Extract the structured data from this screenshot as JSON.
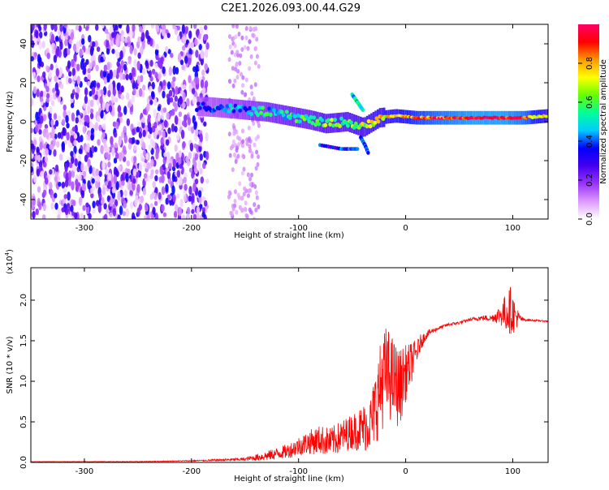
{
  "title": "C2E1.2026.093.00.44.G29",
  "chart_data": [
    {
      "type": "heatmap",
      "xlabel": "Height of straight line (km)",
      "ylabel": "Frequency (Hz)",
      "xlim": [
        -350,
        133
      ],
      "ylim": [
        -50,
        50
      ],
      "xticks": [
        -300,
        -200,
        -100,
        0,
        100
      ],
      "yticks": [
        -40,
        -20,
        0,
        20,
        40
      ],
      "colorbar": {
        "label": "Normalized spectral amplitude",
        "range": [
          0,
          1
        ],
        "ticks": [
          0.0,
          0.2,
          0.4,
          0.6,
          0.8
        ],
        "colors": [
          "#ffffff",
          "#dd99ff",
          "#9933ff",
          "#4400ee",
          "#0000ff",
          "#00ccff",
          "#00ff99",
          "#66ff00",
          "#ffff00",
          "#ff9900",
          "#ff0000",
          "#ff0066"
        ]
      },
      "noise_region_x": [
        -350,
        -185
      ],
      "signal_ridge": [
        {
          "x": -195,
          "y": 8,
          "amp": 0.35
        },
        {
          "x": -170,
          "y": 7,
          "amp": 0.4
        },
        {
          "x": -150,
          "y": 6,
          "amp": 0.45
        },
        {
          "x": -130,
          "y": 5,
          "amp": 0.5
        },
        {
          "x": -110,
          "y": 3,
          "amp": 0.55
        },
        {
          "x": -90,
          "y": 1,
          "amp": 0.55
        },
        {
          "x": -75,
          "y": -1,
          "amp": 0.6
        },
        {
          "x": -55,
          "y": 0,
          "amp": 0.6
        },
        {
          "x": -40,
          "y": -3,
          "amp": 0.65
        },
        {
          "x": -25,
          "y": 2,
          "amp": 0.7
        },
        {
          "x": -10,
          "y": 3,
          "amp": 0.75
        },
        {
          "x": 10,
          "y": 2,
          "amp": 0.85
        },
        {
          "x": 30,
          "y": 2,
          "amp": 0.9
        },
        {
          "x": 60,
          "y": 2,
          "amp": 0.95
        },
        {
          "x": 90,
          "y": 2,
          "amp": 0.95
        },
        {
          "x": 110,
          "y": 2,
          "amp": 0.9
        },
        {
          "x": 133,
          "y": 3,
          "amp": 0.7
        }
      ],
      "branches": [
        {
          "points": [
            [
              -50,
              14
            ],
            [
              -45,
              10
            ],
            [
              -40,
              6
            ]
          ],
          "amp": 0.5
        },
        {
          "points": [
            [
              -80,
              -12
            ],
            [
              -60,
              -14
            ],
            [
              -45,
              -14
            ]
          ],
          "amp": 0.35
        },
        {
          "points": [
            [
              -42,
              -8
            ],
            [
              -38,
              -12
            ],
            [
              -35,
              -16
            ]
          ],
          "amp": 0.4
        }
      ]
    },
    {
      "type": "line",
      "xlabel": "Height of straight line (km)",
      "ylabel": "SNR (10 * v/v)",
      "y_multiplier_label": "(x10",
      "y_multiplier_exp": "4",
      "y_multiplier_close": ")",
      "xlim": [
        -350,
        133
      ],
      "ylim": [
        0,
        2.4
      ],
      "xticks": [
        -300,
        -200,
        -100,
        0,
        100
      ],
      "yticks": [
        0.0,
        0.5,
        1.0,
        1.5,
        2.0
      ],
      "series": [
        {
          "color": "#ff0000",
          "x": [
            -350,
            -300,
            -250,
            -200,
            -170,
            -150,
            -130,
            -110,
            -100,
            -90,
            -80,
            -70,
            -60,
            -50,
            -40,
            -32,
            -27,
            -22,
            -18,
            -14,
            -10,
            -6,
            -2,
            2,
            6,
            10,
            14,
            18,
            22,
            30,
            40,
            50,
            60,
            70,
            80,
            88,
            94,
            98,
            102,
            106,
            110,
            120,
            133
          ],
          "y": [
            0.01,
            0.01,
            0.01,
            0.02,
            0.03,
            0.04,
            0.08,
            0.14,
            0.2,
            0.25,
            0.28,
            0.25,
            0.32,
            0.38,
            0.42,
            0.5,
            0.75,
            1.0,
            1.1,
            1.05,
            1.0,
            0.9,
            1.05,
            1.15,
            1.25,
            1.35,
            1.48,
            1.55,
            1.6,
            1.65,
            1.7,
            1.72,
            1.76,
            1.78,
            1.78,
            1.82,
            1.85,
            1.88,
            1.8,
            1.78,
            1.76,
            1.75,
            1.74
          ],
          "noise": [
            0.002,
            0.002,
            0.003,
            0.006,
            0.015,
            0.02,
            0.06,
            0.09,
            0.12,
            0.15,
            0.18,
            0.18,
            0.2,
            0.22,
            0.3,
            0.35,
            0.5,
            0.6,
            0.6,
            0.55,
            0.5,
            0.5,
            0.4,
            0.3,
            0.25,
            0.15,
            0.1,
            0.06,
            0.04,
            0.02,
            0.02,
            0.02,
            0.02,
            0.03,
            0.04,
            0.12,
            0.25,
            0.3,
            0.2,
            0.06,
            0.02,
            0.01,
            0.01
          ]
        }
      ]
    }
  ]
}
